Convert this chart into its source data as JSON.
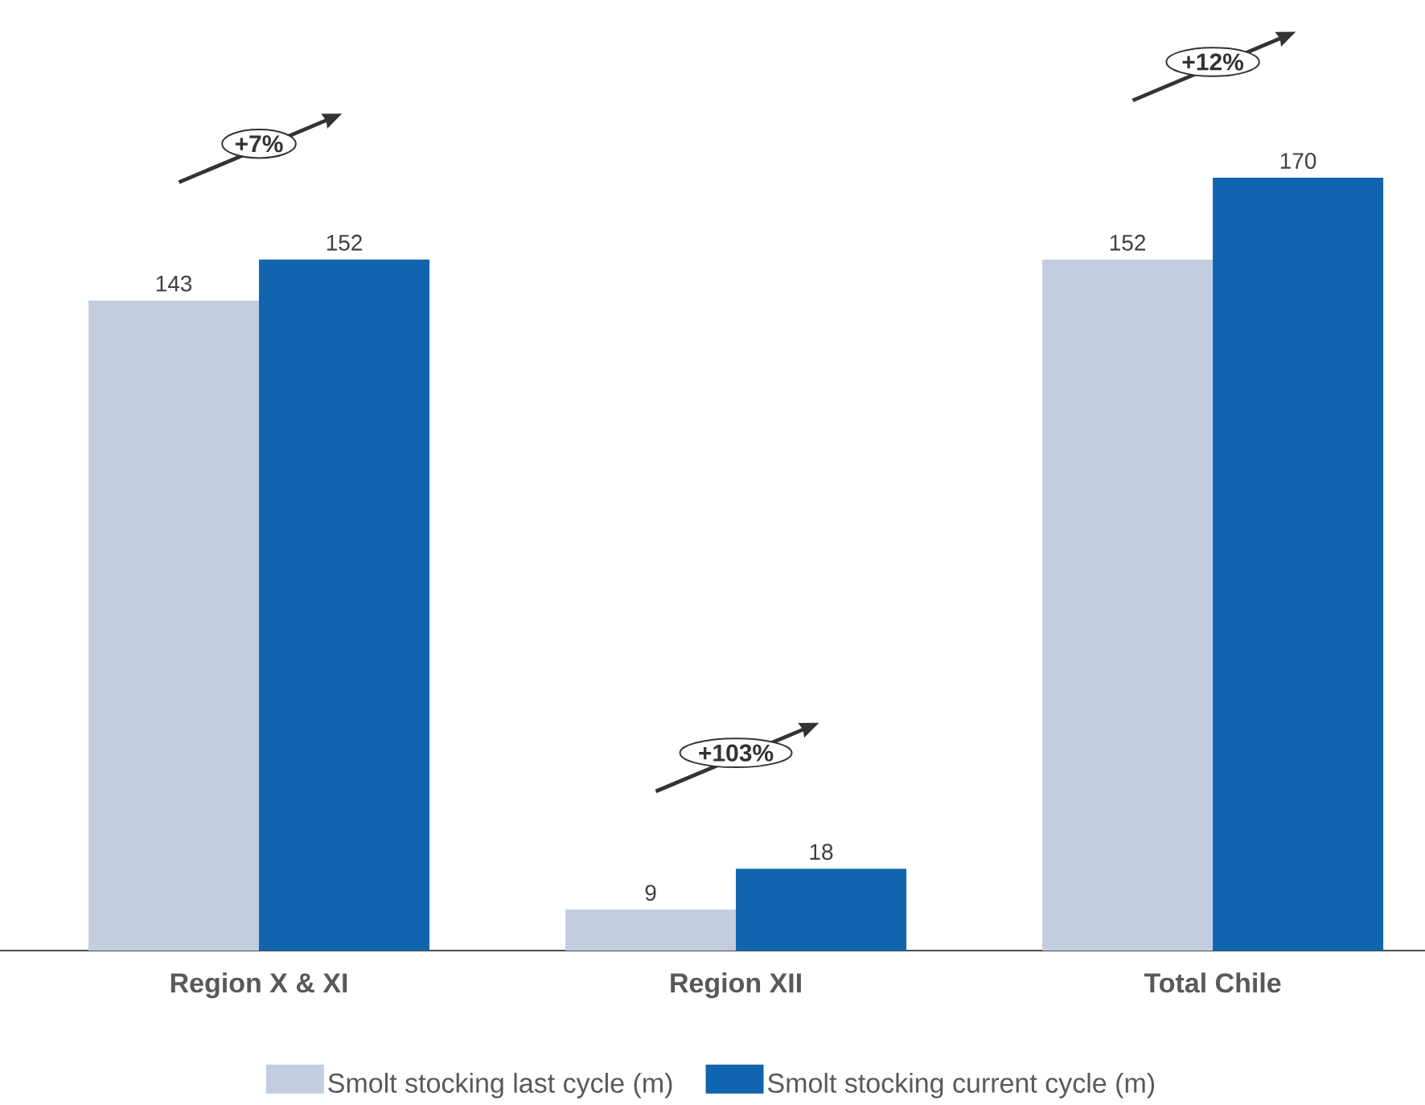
{
  "chart_data": {
    "type": "bar",
    "categories": [
      "Region X & XI",
      "Region XII",
      "Total Chile"
    ],
    "series": [
      {
        "name": "Smolt stocking last cycle (m)",
        "color": "#c3cde0",
        "values": [
          143,
          9,
          152
        ]
      },
      {
        "name": "Smolt stocking current cycle (m)",
        "color": "#1164ae",
        "values": [
          152,
          18,
          170
        ]
      }
    ],
    "data_labels": true,
    "legend": "bottom",
    "tick_labels": "x",
    "annotations": [
      "+7%",
      "+103%",
      "+12%"
    ]
  }
}
